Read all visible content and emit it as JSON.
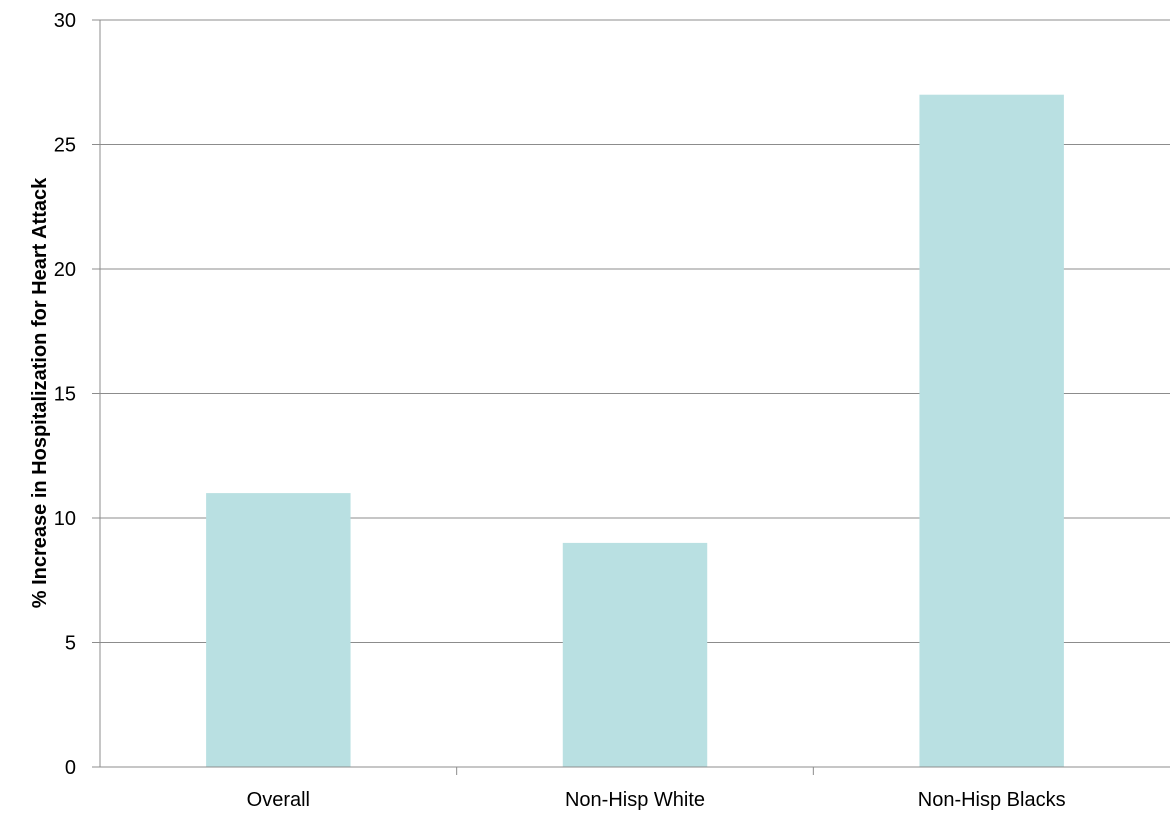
{
  "chart_data": {
    "type": "bar",
    "title": "",
    "xlabel": "",
    "ylabel": "% Increase in Hospitalization for Heart Attack",
    "categories": [
      "Overall",
      "Non-Hisp White",
      "Non-Hisp Blacks"
    ],
    "values": [
      11,
      9,
      27
    ],
    "ylim": [
      0,
      30
    ],
    "yticks": [
      "0",
      "5",
      "10",
      "15",
      "20",
      "25",
      "30"
    ],
    "grid": true,
    "legend": "none",
    "bar_color": "#B9E0E2",
    "grid_color": "#8C8C8C",
    "axis_color": "#8C8C8C"
  }
}
